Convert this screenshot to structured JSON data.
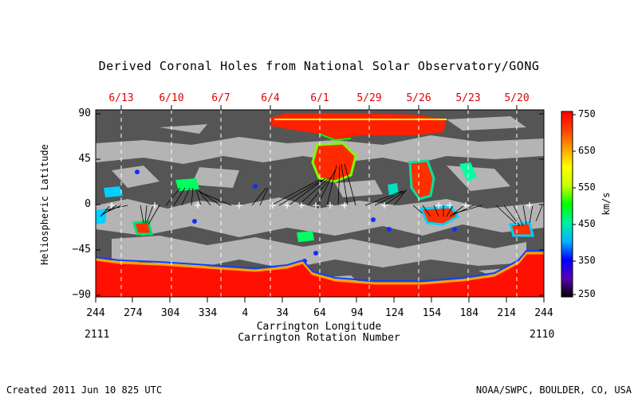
{
  "title": "Derived Coronal Holes from National Solar Observatory/GONG",
  "dates": [
    "6/13",
    "6/10",
    "6/7",
    "6/4",
    "6/1",
    "5/29",
    "5/26",
    "5/23",
    "5/20"
  ],
  "y_axis": {
    "label": "Heliospheric Latitude",
    "ticks": [
      "90",
      "45",
      "0",
      "−45",
      "−90"
    ]
  },
  "x_axis": {
    "label": "Carrington Longitude",
    "ticks": [
      "244",
      "274",
      "304",
      "334",
      "4",
      "34",
      "64",
      "94",
      "124",
      "154",
      "184",
      "214",
      "244"
    ],
    "rotation_label": "Carrington Rotation Number",
    "rotation_left": "2111",
    "rotation_right": "2110"
  },
  "colorbar": {
    "unit": "km/s",
    "ticks": [
      "750",
      "650",
      "550",
      "450",
      "350",
      "250"
    ],
    "colors": [
      "#000000",
      "#5a00b4",
      "#0000ff",
      "#00b4ff",
      "#00f0a0",
      "#00ff00",
      "#c8ff00",
      "#ffff00",
      "#ffa000",
      "#ff4000",
      "#ff0000"
    ]
  },
  "footer": {
    "created": "Created 2011 Jun 10 825 UTC",
    "credit": "NOAA/SWPC, BOULDER, CO, USA"
  },
  "colors": {
    "background_field": "#555555",
    "light_region": "#b4b4b4",
    "date_label": "#e00000"
  }
}
